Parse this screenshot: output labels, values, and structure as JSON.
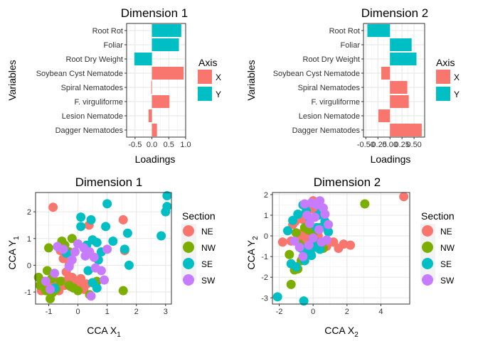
{
  "colors": {
    "X": "#F8766D",
    "Y": "#00BFC4",
    "NE": "#F8766D",
    "NW": "#7CAE00",
    "SE": "#00BFC4",
    "SW": "#C77CFF"
  },
  "chart_data": [
    {
      "type": "bar",
      "orientation": "horizontal",
      "title": "Dimension 1",
      "xlabel": "Loadings",
      "ylabel": "Variables",
      "xlim": [
        -0.75,
        1.0
      ],
      "xticks": [
        -0.5,
        0.0,
        0.5,
        1.0
      ],
      "xtick_labels": [
        "-0.5",
        "0.0",
        "0.5",
        "1.0"
      ],
      "legend": {
        "title": "Axis",
        "entries": [
          "X",
          "Y"
        ],
        "placement": "right"
      },
      "categories": [
        "Root Rot",
        "Foliar",
        "Root Dry Weight",
        "Soybean Cyst Nematode",
        "Spiral Nematodes",
        "F. virguliforme",
        "Lesion Nematode",
        "Dagger Nematodes"
      ],
      "values": [
        0.87,
        0.8,
        -0.52,
        0.94,
        -0.02,
        0.52,
        -0.1,
        0.15
      ],
      "axis": [
        "Y",
        "Y",
        "Y",
        "X",
        "X",
        "X",
        "X",
        "X"
      ]
    },
    {
      "type": "bar",
      "orientation": "horizontal",
      "title": "Dimension 2",
      "xlabel": "Loadings",
      "ylabel": "Variables",
      "xlim": [
        -0.55,
        0.72
      ],
      "xticks": [
        -0.5,
        -0.25,
        0.0,
        0.25,
        0.5
      ],
      "xtick_labels": [
        "-0.50",
        "-0.25",
        "0.00",
        "0.25",
        "0.50"
      ],
      "legend": {
        "title": "Axis",
        "entries": [
          "X",
          "Y"
        ],
        "placement": "right"
      },
      "categories": [
        "Root Rot",
        "Foliar",
        "Root Dry Weight",
        "Soybean Cyst Nematode",
        "Spiral Nematodes",
        "F. virguliforme",
        "Lesion Nematode",
        "Dagger Nematodes"
      ],
      "values": [
        -0.47,
        0.45,
        0.55,
        -0.18,
        0.36,
        0.39,
        -0.24,
        0.66
      ],
      "axis": [
        "Y",
        "Y",
        "Y",
        "X",
        "X",
        "X",
        "X",
        "X"
      ]
    },
    {
      "type": "scatter",
      "title": "Dimension 1",
      "xlabel_main": "CCA X",
      "xlabel_sub": "1",
      "ylabel_main": "CCA Y",
      "ylabel_sub": "1",
      "xlim": [
        -1.45,
        3.2
      ],
      "ylim": [
        -1.45,
        2.72
      ],
      "xticks": [
        -1,
        0,
        1,
        2,
        3
      ],
      "yticks": [
        -1,
        0,
        1,
        2
      ],
      "legend": {
        "title": "Section",
        "entries": [
          "NE",
          "NW",
          "SE",
          "SW"
        ],
        "placement": "right"
      },
      "series": [
        {
          "name": "NE",
          "points": [
            [
              -0.85,
              2.17
            ],
            [
              0.38,
              1.5
            ],
            [
              1.55,
              1.7
            ],
            [
              -1.25,
              -0.95
            ],
            [
              -1.15,
              -0.6
            ],
            [
              -1.05,
              -0.85
            ],
            [
              -0.95,
              -0.75
            ],
            [
              -0.85,
              -0.5
            ],
            [
              -0.75,
              -0.7
            ],
            [
              -0.65,
              -0.85
            ],
            [
              -0.55,
              -0.6
            ],
            [
              -0.45,
              -0.75
            ],
            [
              -0.35,
              -0.55
            ],
            [
              -0.25,
              -0.8
            ],
            [
              -0.15,
              -0.65
            ],
            [
              0.0,
              -0.7
            ],
            [
              0.15,
              -0.75
            ],
            [
              0.3,
              -0.7
            ],
            [
              -0.6,
              0.55
            ],
            [
              -0.5,
              0.25
            ],
            [
              -0.55,
              0.8
            ],
            [
              -0.4,
              -0.25
            ],
            [
              -0.3,
              0.0
            ],
            [
              -0.2,
              -0.45
            ],
            [
              -0.1,
              -0.6
            ],
            [
              0.1,
              -0.5
            ],
            [
              0.2,
              -0.9
            ],
            [
              1.6,
              0.55
            ],
            [
              -0.9,
              -1.05
            ],
            [
              -0.65,
              -0.95
            ]
          ]
        },
        {
          "name": "NW",
          "points": [
            [
              -1.35,
              -0.45
            ],
            [
              -1.1,
              -0.95
            ],
            [
              -0.95,
              -1.25
            ],
            [
              -0.85,
              -1.0
            ],
            [
              -0.75,
              -0.9
            ],
            [
              -0.6,
              -0.6
            ],
            [
              -0.55,
              0.9
            ],
            [
              -0.45,
              0.75
            ],
            [
              -0.3,
              0.5
            ],
            [
              -0.2,
              1.0
            ],
            [
              -0.15,
              -0.85
            ],
            [
              0.0,
              -0.95
            ],
            [
              0.4,
              -1.1
            ],
            [
              0.65,
              -0.6
            ],
            [
              1.55,
              -0.95
            ],
            [
              -1.0,
              0.65
            ],
            [
              -0.9,
              -0.5
            ],
            [
              -0.3,
              -0.75
            ],
            [
              -1.3,
              -0.75
            ],
            [
              -1.05,
              -0.2
            ]
          ]
        },
        {
          "name": "SE",
          "points": [
            [
              0.1,
              1.45
            ],
            [
              0.1,
              1.8
            ],
            [
              0.45,
              1.7
            ],
            [
              0.95,
              1.45
            ],
            [
              1.0,
              2.3
            ],
            [
              0.65,
              0.85
            ],
            [
              0.5,
              0.95
            ],
            [
              0.8,
              0.5
            ],
            [
              0.7,
              0.2
            ],
            [
              1.2,
              0.9
            ],
            [
              1.7,
              1.2
            ],
            [
              1.75,
              0.0
            ],
            [
              2.85,
              1.1
            ],
            [
              3.0,
              2.0
            ],
            [
              3.05,
              2.2
            ],
            [
              3.05,
              2.6
            ],
            [
              -0.4,
              0.45
            ],
            [
              0.3,
              0.75
            ],
            [
              0.35,
              -0.2
            ],
            [
              0.5,
              -0.65
            ],
            [
              0.65,
              -0.85
            ],
            [
              -0.8,
              -0.85
            ],
            [
              1.6,
              0.6
            ]
          ]
        },
        {
          "name": "SW",
          "points": [
            [
              -0.95,
              -0.9
            ],
            [
              -0.8,
              -0.3
            ],
            [
              -0.7,
              0.7
            ],
            [
              -0.5,
              0.6
            ],
            [
              -0.3,
              -0.05
            ],
            [
              -0.2,
              0.2
            ],
            [
              -0.1,
              0.5
            ],
            [
              0.0,
              0.8
            ],
            [
              0.2,
              0.65
            ],
            [
              0.4,
              0.5
            ],
            [
              0.55,
              0.3
            ],
            [
              0.8,
              -0.2
            ],
            [
              0.9,
              -0.55
            ],
            [
              1.0,
              0.6
            ],
            [
              0.45,
              -1.15
            ],
            [
              -1.1,
              -0.6
            ],
            [
              0.25,
              0.35
            ],
            [
              0.6,
              -0.1
            ]
          ]
        }
      ]
    },
    {
      "type": "scatter",
      "title": "Dimension 2",
      "xlabel_main": "CCA X",
      "xlabel_sub": "2",
      "ylabel_main": "CCA Y",
      "ylabel_sub": "2",
      "xlim": [
        -2.4,
        5.7
      ],
      "ylim": [
        -3.3,
        2.1
      ],
      "xticks": [
        -2,
        0,
        2,
        4
      ],
      "yticks": [
        -3,
        -2,
        -1,
        0,
        1,
        2
      ],
      "legend": {
        "title": "Section",
        "entries": [
          "NE",
          "NW",
          "SE",
          "SW"
        ],
        "placement": "right"
      },
      "series": [
        {
          "name": "NE",
          "points": [
            [
              5.35,
              1.9
            ],
            [
              -1.8,
              -0.3
            ],
            [
              -1.3,
              -0.25
            ],
            [
              -1.2,
              0.55
            ],
            [
              -1.05,
              0.7
            ],
            [
              -0.9,
              -0.2
            ],
            [
              -0.8,
              0.1
            ],
            [
              -0.7,
              1.0
            ],
            [
              -0.6,
              -0.5
            ],
            [
              -0.5,
              0.2
            ],
            [
              -0.4,
              -0.1
            ],
            [
              -0.3,
              0.6
            ],
            [
              -0.2,
              1.3
            ],
            [
              -0.1,
              0.3
            ],
            [
              0.0,
              1.7
            ],
            [
              0.1,
              -0.4
            ],
            [
              0.3,
              0.0
            ],
            [
              0.5,
              -0.3
            ],
            [
              0.8,
              -0.5
            ],
            [
              1.2,
              -0.3
            ],
            [
              1.5,
              -0.6
            ],
            [
              1.8,
              -0.4
            ],
            [
              2.2,
              -0.45
            ],
            [
              -0.15,
              -0.7
            ],
            [
              0.2,
              1.1
            ],
            [
              -0.6,
              0.8
            ]
          ]
        },
        {
          "name": "NW",
          "points": [
            [
              3.05,
              1.55
            ],
            [
              -1.3,
              -2.35
            ],
            [
              -1.1,
              -1.65
            ],
            [
              -0.9,
              -1.6
            ],
            [
              -0.7,
              -1.2
            ],
            [
              -0.5,
              -0.95
            ],
            [
              -0.3,
              -0.7
            ],
            [
              -0.1,
              -0.5
            ],
            [
              -0.5,
              0.4
            ],
            [
              -0.3,
              0.3
            ],
            [
              0.0,
              0.15
            ],
            [
              0.2,
              -0.3
            ],
            [
              0.4,
              0.4
            ],
            [
              -1.0,
              0.15
            ],
            [
              -0.8,
              -0.4
            ],
            [
              -1.4,
              -0.9
            ],
            [
              0.6,
              -0.6
            ]
          ]
        },
        {
          "name": "SE",
          "points": [
            [
              -2.1,
              -2.95
            ],
            [
              -0.55,
              -3.15
            ],
            [
              -1.3,
              -1.35
            ],
            [
              -1.0,
              -1.5
            ],
            [
              -0.5,
              -1.2
            ],
            [
              -0.3,
              -0.85
            ],
            [
              -0.1,
              -0.95
            ],
            [
              0.1,
              -0.55
            ],
            [
              0.4,
              -0.65
            ],
            [
              0.2,
              0.4
            ],
            [
              0.6,
              0.45
            ],
            [
              0.9,
              0.2
            ],
            [
              0.7,
              0.7
            ],
            [
              0.5,
              1.3
            ],
            [
              -0.2,
              0.85
            ],
            [
              -0.4,
              1.2
            ],
            [
              -0.6,
              1.5
            ],
            [
              -0.9,
              1.05
            ],
            [
              -1.2,
              0.75
            ],
            [
              -1.5,
              0.25
            ],
            [
              0.0,
              -0.15
            ],
            [
              -0.7,
              -0.6
            ],
            [
              0.3,
              1.0
            ]
          ]
        },
        {
          "name": "SW",
          "points": [
            [
              -0.1,
              1.6
            ],
            [
              0.2,
              1.5
            ],
            [
              0.4,
              1.7
            ],
            [
              0.6,
              1.35
            ],
            [
              0.7,
              1.05
            ],
            [
              0.9,
              0.55
            ],
            [
              -0.5,
              1.55
            ],
            [
              -0.35,
              1.0
            ],
            [
              -0.2,
              0.6
            ],
            [
              0.1,
              0.9
            ],
            [
              0.35,
              0.3
            ],
            [
              -0.8,
              -0.55
            ],
            [
              -0.6,
              -1.0
            ],
            [
              0.0,
              -0.1
            ],
            [
              0.5,
              -0.3
            ],
            [
              -1.1,
              -0.25
            ],
            [
              0.8,
              -0.2
            ],
            [
              -0.25,
              -0.45
            ]
          ]
        }
      ]
    }
  ]
}
